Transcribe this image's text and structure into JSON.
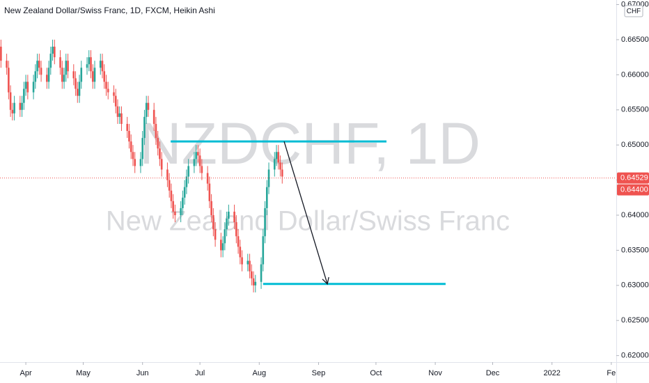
{
  "chart_data": {
    "type": "candlestick",
    "title": "New Zealand Dollar/Swiss Franc, 1D, FXCM, Heikin Ashi",
    "watermark": {
      "symbol": "NZDCHF, 1D",
      "description": "New Zealand Dollar/Swiss Franc"
    },
    "currency": "CHF",
    "up_color": "#26a69a",
    "down_color": "#ef5350",
    "level_color": "#00bcd4",
    "x": [
      78,
      81,
      82,
      83,
      84,
      85,
      88,
      89,
      90,
      91,
      92,
      95,
      96,
      97,
      98,
      99,
      102,
      103,
      104,
      105,
      106,
      109,
      110,
      111,
      112,
      113,
      116,
      117,
      118,
      119,
      120,
      123,
      124,
      125,
      126,
      127,
      130,
      131,
      132,
      133,
      134,
      137,
      138,
      139,
      140,
      141,
      144,
      145,
      146,
      147,
      148,
      151,
      152,
      153,
      154,
      155,
      158,
      159,
      160,
      161,
      162,
      165,
      166,
      167,
      168,
      169,
      172,
      173,
      174,
      175,
      176,
      179,
      180,
      181,
      182,
      183,
      186,
      187,
      188,
      189,
      190,
      193,
      194,
      195,
      196,
      197,
      200,
      201,
      202,
      203,
      204,
      207,
      208,
      209,
      210,
      211,
      214,
      215,
      216,
      217,
      218,
      221,
      222,
      223,
      224,
      225
    ],
    "open": [
      0.664,
      0.662,
      0.661,
      0.6575,
      0.655,
      0.6545,
      0.656,
      0.655,
      0.656,
      0.658,
      0.659,
      0.6575,
      0.659,
      0.6605,
      0.662,
      0.661,
      0.66,
      0.659,
      0.661,
      0.663,
      0.664,
      0.6625,
      0.661,
      0.659,
      0.66,
      0.662,
      0.6605,
      0.6595,
      0.658,
      0.657,
      0.659,
      0.661,
      0.6615,
      0.6625,
      0.6605,
      0.659,
      0.661,
      0.662,
      0.6605,
      0.659,
      0.658,
      0.6575,
      0.657,
      0.6555,
      0.654,
      0.6545,
      0.653,
      0.652,
      0.6505,
      0.649,
      0.648,
      0.647,
      0.648,
      0.651,
      0.654,
      0.656,
      0.655,
      0.653,
      0.651,
      0.6495,
      0.648,
      0.6465,
      0.645,
      0.6435,
      0.642,
      0.6405,
      0.64,
      0.641,
      0.6425,
      0.644,
      0.6455,
      0.647,
      0.648,
      0.649,
      0.6485,
      0.647,
      0.646,
      0.6445,
      0.642,
      0.64,
      0.638,
      0.6365,
      0.635,
      0.636,
      0.638,
      0.6395,
      0.6405,
      0.639,
      0.637,
      0.6355,
      0.634,
      0.633,
      0.6335,
      0.632,
      0.631,
      0.63,
      0.6305,
      0.633,
      0.637,
      0.641,
      0.644,
      0.6465,
      0.648,
      0.649,
      0.6475,
      0.6465
    ],
    "high": [
      0.665,
      0.663,
      0.662,
      0.6585,
      0.656,
      0.657,
      0.657,
      0.657,
      0.659,
      0.66,
      0.66,
      0.66,
      0.6615,
      0.663,
      0.663,
      0.662,
      0.661,
      0.662,
      0.664,
      0.665,
      0.665,
      0.6635,
      0.662,
      0.661,
      0.663,
      0.663,
      0.6615,
      0.6605,
      0.659,
      0.66,
      0.662,
      0.6625,
      0.6635,
      0.6635,
      0.6615,
      0.662,
      0.663,
      0.663,
      0.6615,
      0.66,
      0.659,
      0.6585,
      0.658,
      0.6565,
      0.6555,
      0.6555,
      0.654,
      0.653,
      0.6515,
      0.65,
      0.649,
      0.649,
      0.652,
      0.655,
      0.657,
      0.657,
      0.656,
      0.654,
      0.652,
      0.6505,
      0.649,
      0.6475,
      0.646,
      0.6445,
      0.643,
      0.6415,
      0.642,
      0.6435,
      0.645,
      0.6465,
      0.648,
      0.649,
      0.65,
      0.65,
      0.6495,
      0.648,
      0.647,
      0.6455,
      0.643,
      0.641,
      0.639,
      0.6375,
      0.637,
      0.639,
      0.6405,
      0.6415,
      0.6415,
      0.64,
      0.638,
      0.6365,
      0.635,
      0.6345,
      0.6345,
      0.633,
      0.632,
      0.6315,
      0.634,
      0.638,
      0.642,
      0.645,
      0.6475,
      0.649,
      0.65,
      0.65,
      0.6485,
      0.6475
    ],
    "low": [
      0.661,
      0.66,
      0.6565,
      0.654,
      0.6535,
      0.6535,
      0.654,
      0.654,
      0.655,
      0.657,
      0.6565,
      0.6565,
      0.658,
      0.6595,
      0.66,
      0.659,
      0.658,
      0.658,
      0.66,
      0.662,
      0.6615,
      0.66,
      0.658,
      0.658,
      0.659,
      0.6595,
      0.6585,
      0.657,
      0.656,
      0.656,
      0.658,
      0.66,
      0.6605,
      0.6595,
      0.658,
      0.658,
      0.66,
      0.6595,
      0.658,
      0.657,
      0.6565,
      0.656,
      0.6545,
      0.653,
      0.653,
      0.652,
      0.651,
      0.6495,
      0.648,
      0.647,
      0.646,
      0.646,
      0.647,
      0.65,
      0.653,
      0.654,
      0.652,
      0.65,
      0.6485,
      0.647,
      0.6455,
      0.644,
      0.6425,
      0.641,
      0.6395,
      0.639,
      0.639,
      0.64,
      0.6415,
      0.643,
      0.6445,
      0.646,
      0.647,
      0.6475,
      0.646,
      0.645,
      0.6435,
      0.641,
      0.639,
      0.637,
      0.6355,
      0.634,
      0.634,
      0.635,
      0.637,
      0.6385,
      0.638,
      0.636,
      0.6345,
      0.633,
      0.632,
      0.632,
      0.631,
      0.63,
      0.629,
      0.629,
      0.6295,
      0.632,
      0.636,
      0.64,
      0.643,
      0.6455,
      0.647,
      0.6465,
      0.6455,
      0.6445
    ],
    "close": [
      0.662,
      0.661,
      0.6575,
      0.655,
      0.6545,
      0.656,
      0.655,
      0.656,
      0.658,
      0.659,
      0.6575,
      0.659,
      0.6605,
      0.662,
      0.661,
      0.66,
      0.659,
      0.661,
      0.663,
      0.664,
      0.6625,
      0.661,
      0.659,
      0.66,
      0.662,
      0.6605,
      0.6595,
      0.658,
      0.657,
      0.659,
      0.661,
      0.6615,
      0.6625,
      0.6605,
      0.659,
      0.661,
      0.662,
      0.6605,
      0.659,
      0.658,
      0.6575,
      0.657,
      0.6555,
      0.654,
      0.6545,
      0.653,
      0.652,
      0.6505,
      0.649,
      0.648,
      0.647,
      0.648,
      0.651,
      0.654,
      0.656,
      0.655,
      0.653,
      0.651,
      0.6495,
      0.648,
      0.6465,
      0.645,
      0.6435,
      0.642,
      0.6405,
      0.64,
      0.641,
      0.6425,
      0.644,
      0.6455,
      0.647,
      0.648,
      0.649,
      0.6485,
      0.647,
      0.646,
      0.6445,
      0.642,
      0.64,
      0.638,
      0.6365,
      0.635,
      0.636,
      0.638,
      0.6395,
      0.6405,
      0.639,
      0.637,
      0.6355,
      0.634,
      0.633,
      0.6335,
      0.632,
      0.631,
      0.63,
      0.6305,
      0.633,
      0.637,
      0.641,
      0.644,
      0.6465,
      0.648,
      0.649,
      0.6475,
      0.6465,
      0.6455
    ],
    "xlim": [
      77.5,
      399.6
    ],
    "ylim": [
      0.61907,
      0.67065
    ],
    "xticks": [
      {
        "value": 91,
        "label": "Apr"
      },
      {
        "value": 121,
        "label": "May"
      },
      {
        "value": 152,
        "label": "Jun"
      },
      {
        "value": 182,
        "label": "Jul"
      },
      {
        "value": 213,
        "label": "Aug"
      },
      {
        "value": 244,
        "label": "Sep"
      },
      {
        "value": 274,
        "label": "Oct"
      },
      {
        "value": 305,
        "label": "Nov"
      },
      {
        "value": 335,
        "label": "Dec"
      },
      {
        "value": 366,
        "label": "2022"
      },
      {
        "value": 397,
        "label": "Fe"
      }
    ],
    "yticks": [
      {
        "value": 0.62,
        "label": "0.62000"
      },
      {
        "value": 0.625,
        "label": "0.62500"
      },
      {
        "value": 0.63,
        "label": "0.63000"
      },
      {
        "value": 0.635,
        "label": "0.63500"
      },
      {
        "value": 0.64,
        "label": "0.64000"
      },
      {
        "value": 0.645,
        "label": "0.64500"
      },
      {
        "value": 0.65,
        "label": "0.65000"
      },
      {
        "value": 0.655,
        "label": "0.65500"
      },
      {
        "value": 0.66,
        "label": "0.66000"
      },
      {
        "value": 0.665,
        "label": "0.66500"
      },
      {
        "value": 0.67,
        "label": "0.67000"
      }
    ],
    "price_labels": [
      0.64529,
      {
        "value": 0.644,
        "label": "0.64400"
      }
    ],
    "levels": [
      {
        "price": 0.6505,
        "from": 166.7,
        "to": 279.5
      },
      {
        "price": 0.6302,
        "from": 215,
        "to": 310.4
      }
    ],
    "arrow": {
      "x": [
        226,
        248.6
      ],
      "y": [
        0.6505,
        0.6302
      ]
    }
  }
}
